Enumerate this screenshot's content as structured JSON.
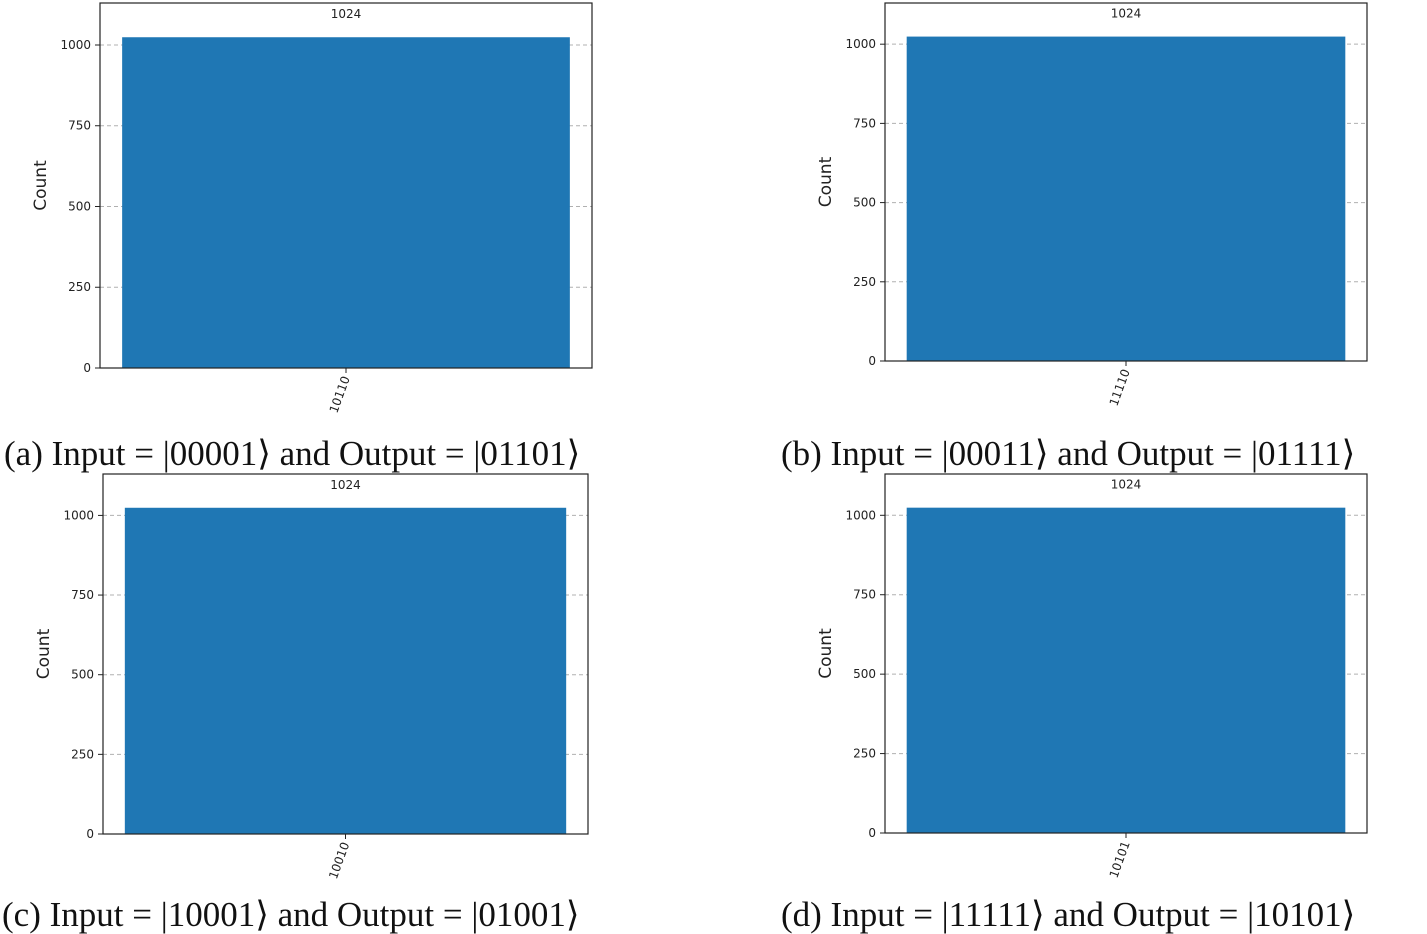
{
  "colors": {
    "bar": "#1f77b4",
    "grid": "#b0b0b0",
    "frame": "#222222"
  },
  "chart_data": [
    {
      "type": "bar",
      "categories": [
        "10110"
      ],
      "values": [
        1024
      ],
      "data_labels": [
        "1024"
      ],
      "ylabel": "Count",
      "ylim": [
        0,
        1130
      ],
      "yticks": [
        0,
        250,
        500,
        750,
        1000
      ],
      "grid": "y-dashed",
      "caption": "(a) Input = |00001⟩ and Output = |01101⟩"
    },
    {
      "type": "bar",
      "categories": [
        "11110"
      ],
      "values": [
        1024
      ],
      "data_labels": [
        "1024"
      ],
      "ylabel": "Count",
      "ylim": [
        0,
        1130
      ],
      "yticks": [
        0,
        250,
        500,
        750,
        1000
      ],
      "grid": "y-dashed",
      "caption": "(b) Input = |00011⟩ and Output = |01111⟩"
    },
    {
      "type": "bar",
      "categories": [
        "10010"
      ],
      "values": [
        1024
      ],
      "data_labels": [
        "1024"
      ],
      "ylabel": "Count",
      "ylim": [
        0,
        1130
      ],
      "yticks": [
        0,
        250,
        500,
        750,
        1000
      ],
      "grid": "y-dashed",
      "caption": "(c) Input = |10001⟩ and Output = |01001⟩"
    },
    {
      "type": "bar",
      "categories": [
        "10101"
      ],
      "values": [
        1024
      ],
      "data_labels": [
        "1024"
      ],
      "ylabel": "Count",
      "ylim": [
        0,
        1130
      ],
      "yticks": [
        0,
        250,
        500,
        750,
        1000
      ],
      "grid": "y-dashed",
      "caption": "(d) Input = |11111⟩ and Output = |10101⟩"
    }
  ]
}
